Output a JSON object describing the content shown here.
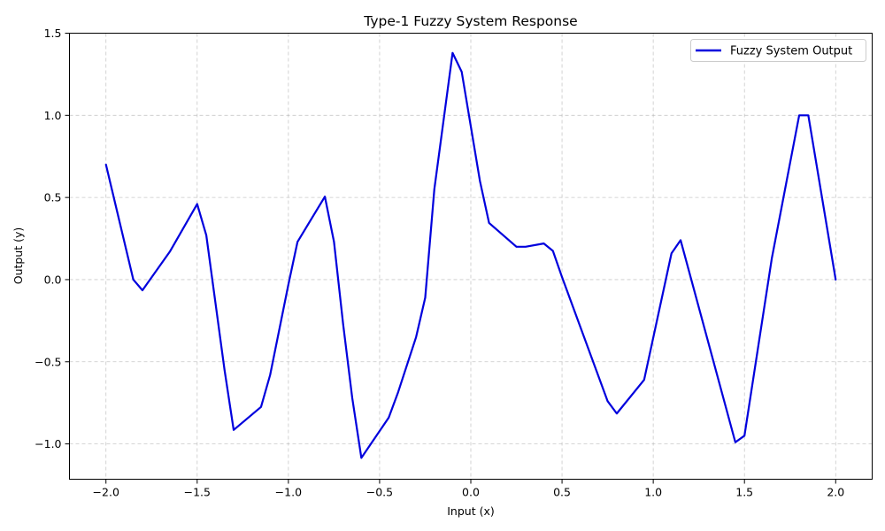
{
  "chart_data": {
    "type": "line",
    "title": "Type-1 Fuzzy System Response",
    "xlabel": "Input (x)",
    "ylabel": "Output (y)",
    "xlim": [
      -2.2,
      2.2
    ],
    "ylim": [
      -1.215,
      1.5
    ],
    "xticks": [
      -2.0,
      -1.5,
      -1.0,
      -0.5,
      0.0,
      0.5,
      1.0,
      1.5,
      2.0
    ],
    "xtick_labels": [
      "−2.0",
      "−1.5",
      "−1.0",
      "−0.5",
      "0.0",
      "0.5",
      "1.0",
      "1.5",
      "2.0"
    ],
    "yticks": [
      -1.0,
      -0.5,
      0.0,
      0.5,
      1.0,
      1.5
    ],
    "ytick_labels": [
      "−1.0",
      "−0.5",
      "0.0",
      "0.5",
      "1.0",
      "1.5"
    ],
    "grid": true,
    "legend_position": "top-right",
    "series": [
      {
        "name": "Fuzzy System Output",
        "color": "#0000dd",
        "x": [
          -2.0,
          -1.85,
          -1.8,
          -1.65,
          -1.5,
          -1.45,
          -1.35,
          -1.3,
          -1.15,
          -1.1,
          -1.0,
          -0.95,
          -0.8,
          -0.75,
          -0.7,
          -0.65,
          -0.6,
          -0.45,
          -0.4,
          -0.3,
          -0.25,
          -0.2,
          -0.1,
          -0.05,
          0.05,
          0.1,
          0.25,
          0.3,
          0.4,
          0.45,
          0.5,
          0.75,
          0.8,
          0.95,
          1.1,
          1.15,
          1.45,
          1.5,
          1.65,
          1.8,
          1.85,
          2.0
        ],
        "y": [
          0.7,
          0.0,
          -0.065,
          0.17,
          0.46,
          0.27,
          -0.55,
          -0.915,
          -0.775,
          -0.58,
          -0.03,
          0.23,
          0.505,
          0.23,
          -0.27,
          -0.72,
          -1.085,
          -0.84,
          -0.69,
          -0.35,
          -0.11,
          0.55,
          1.38,
          1.265,
          0.6,
          0.345,
          0.2,
          0.2,
          0.22,
          0.175,
          0.015,
          -0.74,
          -0.815,
          -0.61,
          0.16,
          0.24,
          -0.99,
          -0.95,
          0.13,
          1.0,
          1.0,
          0.0
        ]
      }
    ]
  }
}
